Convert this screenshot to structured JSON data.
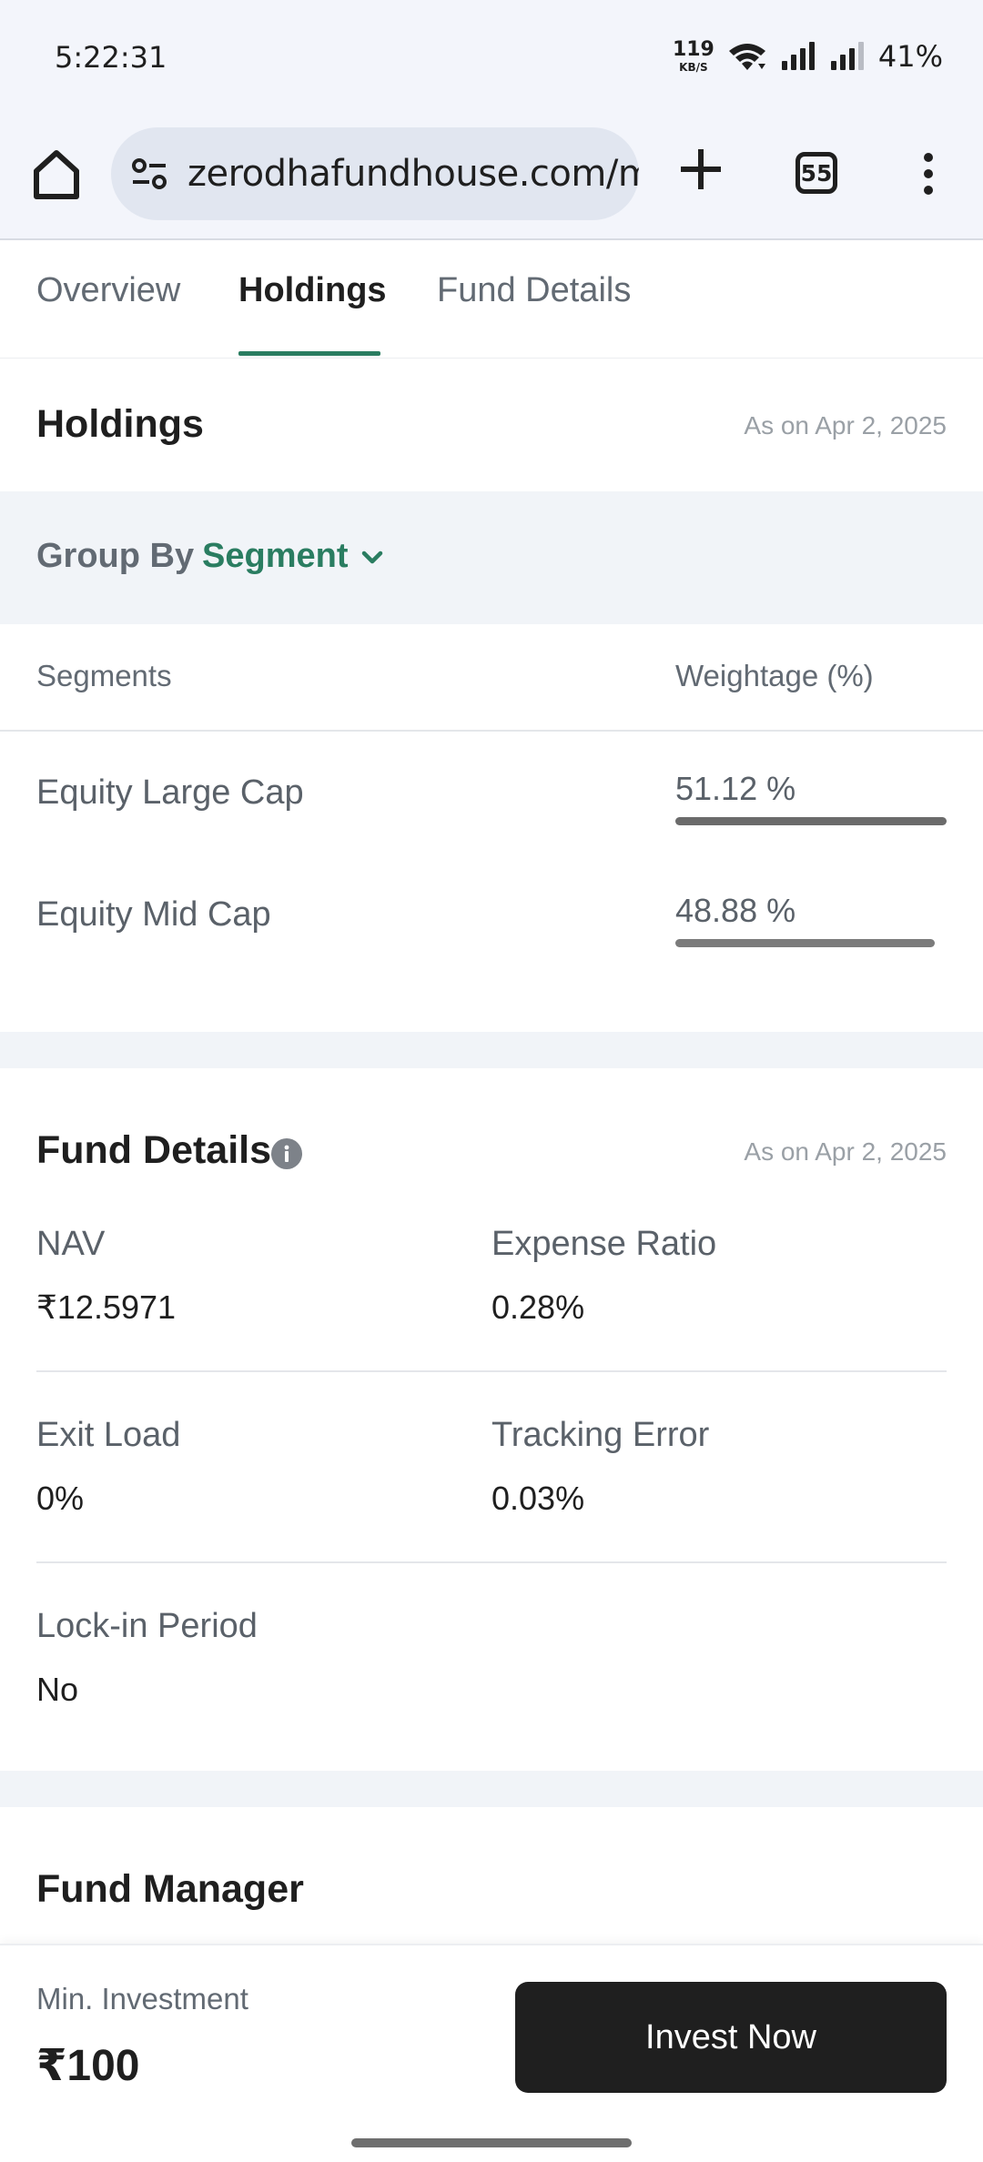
{
  "status_bar": {
    "time": "5:22:31",
    "net_speed_value": "119",
    "net_speed_unit": "KB/S",
    "battery": "41%"
  },
  "browser": {
    "url": "zerodhafundhouse.com/m",
    "tab_count": "55"
  },
  "tabs": [
    {
      "label": "Overview"
    },
    {
      "label": "Holdings"
    },
    {
      "label": "Fund Details"
    }
  ],
  "holdings": {
    "title": "Holdings",
    "as_on": "As on Apr 2, 2025",
    "group_by_label": "Group By",
    "group_by_value": "Segment",
    "col_segments": "Segments",
    "col_weightage": "Weightage (%)",
    "rows": [
      {
        "label": "Equity Large Cap",
        "value": "51.12 %",
        "pct": 51.12
      },
      {
        "label": "Equity Mid Cap",
        "value": "48.88 %",
        "pct": 48.88
      }
    ]
  },
  "fund_details": {
    "title": "Fund Details",
    "as_on": "As on Apr 2, 2025",
    "nav_label": "NAV",
    "nav_value": "₹12.5971",
    "expense_label": "Expense Ratio",
    "expense_value": "0.28%",
    "exit_label": "Exit Load",
    "exit_value": "0%",
    "tracking_label": "Tracking Error",
    "tracking_value": "0.03%",
    "lockin_label": "Lock-in Period",
    "lockin_value": "No"
  },
  "fund_manager": {
    "title": "Fund Manager"
  },
  "footer": {
    "min_investment_label": "Min. Investment",
    "min_investment_value": "₹100",
    "invest_button": "Invest Now"
  },
  "colors": {
    "accent": "#2a7d61",
    "band": "#f1f4f8",
    "button": "#1f1f1f"
  }
}
